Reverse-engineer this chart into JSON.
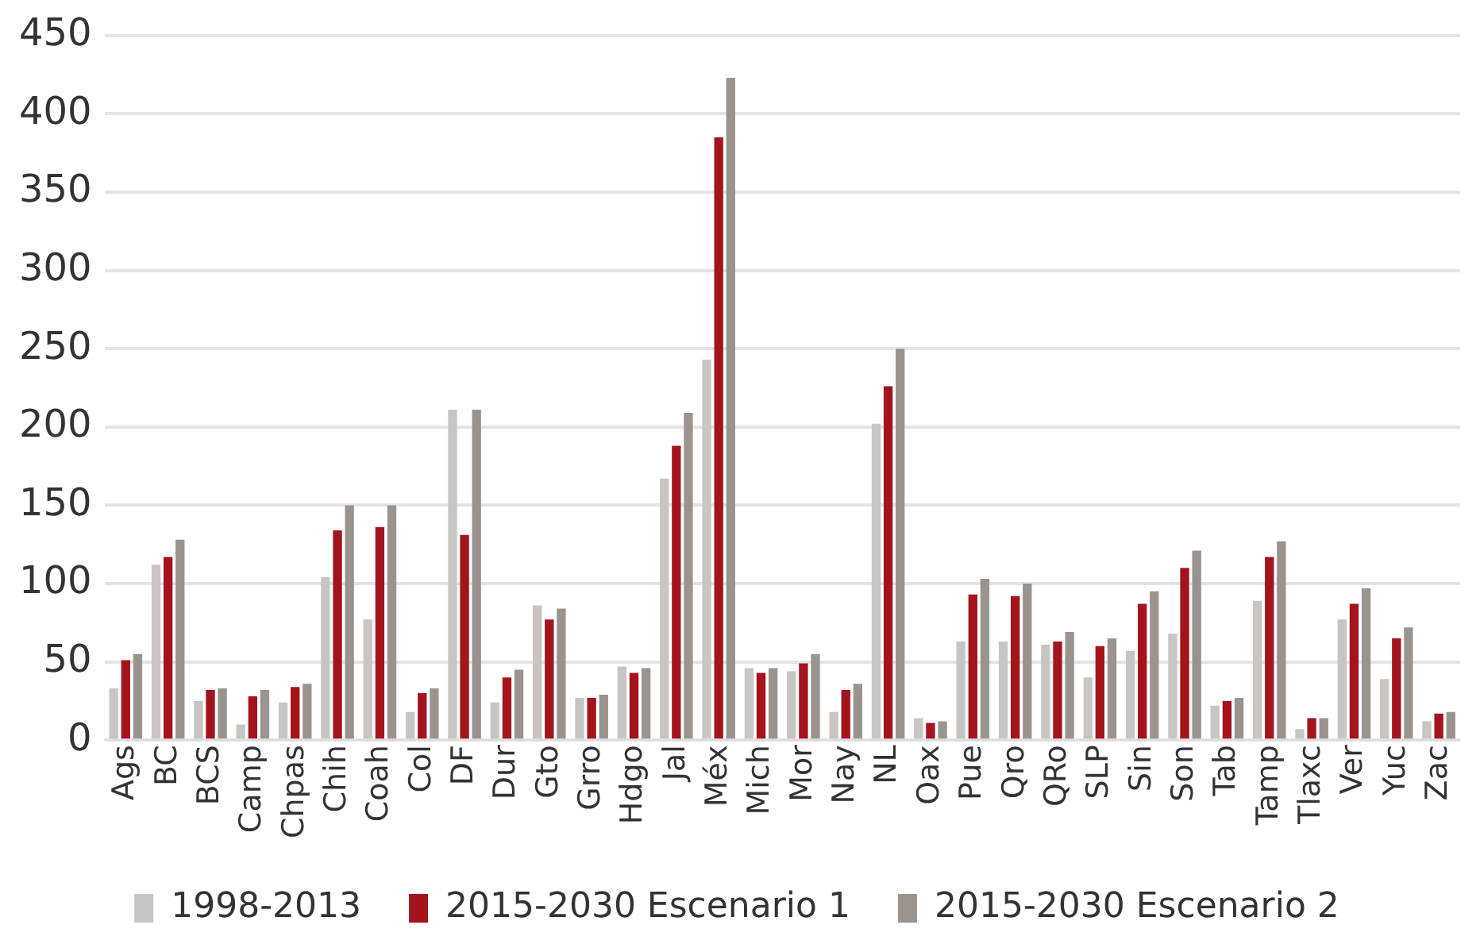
{
  "chart_data": {
    "type": "bar",
    "categories": [
      "Ags",
      "BC",
      "BCS",
      "Camp",
      "Chpas",
      "Chih",
      "Coah",
      "Col",
      "DF",
      "Dur",
      "Gto",
      "Grro",
      "Hdgo",
      "Jal",
      "Méx",
      "Mich",
      "Mor",
      "Nay",
      "NL",
      "Oax",
      "Pue",
      "Qro",
      "QRo",
      "SLP",
      "Sin",
      "Son",
      "Tab",
      "Tamp",
      "Tlaxc",
      "Ver",
      "Yuc",
      "Zac"
    ],
    "series": [
      {
        "name": "1998-2013",
        "color": "#c9c5c3",
        "values": [
          33,
          112,
          25,
          10,
          24,
          104,
          77,
          18,
          211,
          24,
          86,
          27,
          47,
          167,
          243,
          46,
          44,
          18,
          202,
          14,
          63,
          63,
          61,
          40,
          57,
          68,
          22,
          89,
          7,
          77,
          39,
          12
        ]
      },
      {
        "name": "2015-2030 Escenario 1",
        "color": "#a3141d",
        "values": [
          51,
          117,
          32,
          28,
          34,
          134,
          136,
          30,
          131,
          40,
          77,
          27,
          43,
          188,
          385,
          43,
          49,
          32,
          226,
          11,
          93,
          92,
          63,
          60,
          87,
          110,
          25,
          117,
          14,
          87,
          65,
          17
        ]
      },
      {
        "name": "2015-2030 Escenario 2",
        "color": "#9b938e",
        "values": [
          55,
          128,
          33,
          32,
          36,
          150,
          150,
          33,
          211,
          45,
          84,
          29,
          46,
          209,
          423,
          46,
          55,
          36,
          250,
          12,
          103,
          100,
          69,
          65,
          95,
          121,
          27,
          127,
          14,
          97,
          72,
          18
        ]
      }
    ],
    "ylim": [
      0,
      450
    ],
    "yticks": [
      0,
      50,
      100,
      150,
      200,
      250,
      300,
      350,
      400,
      450
    ],
    "grid": "y",
    "legend": "bottom"
  }
}
